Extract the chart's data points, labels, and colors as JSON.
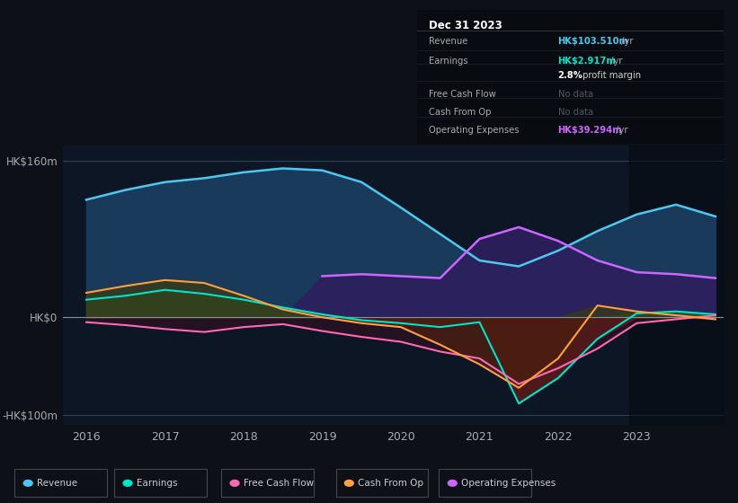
{
  "background_color": "#0d1117",
  "plot_bg_color": "#0c1624",
  "title_box_bg": "#080c10",
  "ylim": [
    -110,
    175
  ],
  "xlim": [
    2015.7,
    2024.1
  ],
  "ytick_positions": [
    -100,
    0,
    160
  ],
  "ytick_labels": [
    "-HK$100m",
    "HK$0",
    "HK$160m"
  ],
  "xtick_years": [
    2016,
    2017,
    2018,
    2019,
    2020,
    2021,
    2022,
    2023
  ],
  "years": [
    2016,
    2016.5,
    2017,
    2017.5,
    2018,
    2018.5,
    2019,
    2019.5,
    2020,
    2020.5,
    2021,
    2021.5,
    2022,
    2022.5,
    2023,
    2023.5,
    2024
  ],
  "revenue": [
    120,
    130,
    138,
    142,
    148,
    152,
    150,
    138,
    112,
    85,
    58,
    52,
    68,
    88,
    105,
    115,
    103
  ],
  "earnings": [
    18,
    22,
    28,
    24,
    18,
    10,
    3,
    -3,
    -6,
    -10,
    -5,
    -88,
    -62,
    -22,
    4,
    6,
    3
  ],
  "free_cash_flow": [
    -5,
    -8,
    -12,
    -15,
    -10,
    -7,
    -14,
    -20,
    -25,
    -35,
    -42,
    -68,
    -52,
    -32,
    -6,
    -2,
    2
  ],
  "cash_from_op": [
    25,
    32,
    38,
    35,
    22,
    8,
    0,
    -6,
    -10,
    -28,
    -48,
    -72,
    -42,
    12,
    6,
    2,
    -2
  ],
  "op_expenses": [
    0,
    0,
    0,
    0,
    0,
    0,
    42,
    44,
    42,
    40,
    80,
    92,
    78,
    58,
    46,
    44,
    40
  ],
  "info_box": {
    "date": "Dec 31 2023",
    "rows": [
      {
        "label": "Revenue",
        "value": "HK$103.510m",
        "suffix": " /yr",
        "value_color": "#4dc8f0",
        "nodata": false
      },
      {
        "label": "Earnings",
        "value": "HK$2.917m",
        "suffix": " /yr",
        "value_color": "#00e5cc",
        "nodata": false
      },
      {
        "label": "",
        "value": "2.8%",
        "suffix": " profit margin",
        "value_color": "#ffffff",
        "nodata": false
      },
      {
        "label": "Free Cash Flow",
        "value": "No data",
        "suffix": "",
        "value_color": "#555566",
        "nodata": true
      },
      {
        "label": "Cash From Op",
        "value": "No data",
        "suffix": "",
        "value_color": "#555566",
        "nodata": true
      },
      {
        "label": "Operating Expenses",
        "value": "HK$39.294m",
        "suffix": " /yr",
        "value_color": "#cc66ff",
        "nodata": false
      }
    ]
  },
  "legend": [
    {
      "label": "Revenue",
      "color": "#4dc8f0"
    },
    {
      "label": "Earnings",
      "color": "#00e5cc"
    },
    {
      "label": "Free Cash Flow",
      "color": "#ff69b4"
    },
    {
      "label": "Cash From Op",
      "color": "#ffa040"
    },
    {
      "label": "Operating Expenses",
      "color": "#cc66ff"
    }
  ],
  "line_colors": {
    "revenue": "#4dc8f0",
    "earnings": "#00e5cc",
    "free_cash_flow": "#ff69b4",
    "cash_from_op": "#ffa040",
    "op_expenses": "#cc66ff"
  },
  "fill_colors": {
    "revenue": "#1a3a5c",
    "op_expenses_pos": "#2d1f5e",
    "earnings_pos": "#2a5a3a",
    "earnings_neg": "#5a1a1a",
    "cfop_neg": "#4a2010",
    "cfop_pos": "#3a3a10",
    "fcf_neg": "#3a1020"
  }
}
